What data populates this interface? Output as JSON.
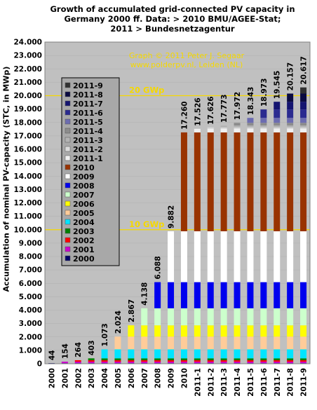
{
  "title_lines": [
    "Growth of accumulated grid-connected PV capacity in",
    "Germany 2000 ff. Data: > 2010 BMU/AGEE-Stat;",
    "2011 > Bundesnetzagentur"
  ],
  "credit_lines": [
    "Graph © 2011 Peter J. Segaar",
    "www.polderpv.nl, Leiden (NL)"
  ],
  "chart_data": {
    "type": "bar",
    "stacked": true,
    "ylabel": "Accumulation of nominal PV-capacity (STC, in MWp)",
    "ylim": [
      0,
      24000
    ],
    "ytick_step": 1000,
    "ytick_labels": [
      "0",
      "1.000",
      "2.000",
      "3.000",
      "4.000",
      "5.000",
      "6.000",
      "7.000",
      "8.000",
      "9.000",
      "10.000",
      "11.000",
      "12.000",
      "13.000",
      "14.000",
      "15.000",
      "16.000",
      "17.000",
      "18.000",
      "19.000",
      "20.000",
      "21.000",
      "22.000",
      "23.000",
      "24.000"
    ],
    "grid": true,
    "background": "#c0c0c0",
    "categories": [
      "2000",
      "2001",
      "2002",
      "2003",
      "2004",
      "2005",
      "2006",
      "2007",
      "2008",
      "2009",
      "2010",
      "2011-1",
      "2011-2",
      "2011-3",
      "2011-4",
      "2011-5",
      "2011-6",
      "2011-7",
      "2011-8",
      "2011-9"
    ],
    "totals_labels": [
      "44",
      "154",
      "264",
      "403",
      "1.073",
      "2.024",
      "2.867",
      "4.138",
      "6.088",
      "9.882",
      "17.260",
      "17.526",
      "17.626",
      "17.773",
      "17.972",
      "18.343",
      "18.973",
      "19.545",
      "20.157",
      "20.617"
    ],
    "totals": [
      44,
      154,
      264,
      403,
      1073,
      2024,
      2867,
      4138,
      6088,
      9882,
      17260,
      17526,
      17626,
      17773,
      17972,
      18343,
      18973,
      19545,
      20157,
      20617
    ],
    "series": [
      {
        "name": "2000",
        "color": "#000066",
        "increment": 44
      },
      {
        "name": "2001",
        "color": "#cc00cc",
        "increment": 110
      },
      {
        "name": "2002",
        "color": "#ff0000",
        "increment": 110
      },
      {
        "name": "2003",
        "color": "#008000",
        "increment": 139
      },
      {
        "name": "2004",
        "color": "#00e5ff",
        "increment": 670
      },
      {
        "name": "2005",
        "color": "#ffcc99",
        "increment": 951
      },
      {
        "name": "2006",
        "color": "#ffff00",
        "increment": 843
      },
      {
        "name": "2007",
        "color": "#ccffcc",
        "increment": 1271
      },
      {
        "name": "2008",
        "color": "#0000ee",
        "increment": 1950
      },
      {
        "name": "2009",
        "color": "#ffffff",
        "increment": 3794
      },
      {
        "name": "2010",
        "color": "#993300",
        "increment": 7378
      },
      {
        "name": "2011-1",
        "color": "#f0f0f0",
        "increment": 266
      },
      {
        "name": "2011-2",
        "color": "#dcdcdc",
        "increment": 100
      },
      {
        "name": "2011-3",
        "color": "#b4b4b4",
        "increment": 147
      },
      {
        "name": "2011-4",
        "color": "#8c8c8c",
        "increment": 199
      },
      {
        "name": "2011-5",
        "color": "#6c6cb0",
        "increment": 371
      },
      {
        "name": "2011-6",
        "color": "#2a2a90",
        "increment": 630
      },
      {
        "name": "2011-7",
        "color": "#141470",
        "increment": 572
      },
      {
        "name": "2011-8",
        "color": "#0a0a40",
        "increment": 612
      },
      {
        "name": "2011-9",
        "color": "#303030",
        "increment": 460
      }
    ],
    "legend_order": [
      "2011-9",
      "2011-8",
      "2011-7",
      "2011-6",
      "2011-5",
      "2011-4",
      "2011-3",
      "2011-2",
      "2011-1",
      "2010",
      "2009",
      "2008",
      "2007",
      "2006",
      "2005",
      "2004",
      "2003",
      "2002",
      "2001",
      "2000"
    ],
    "legend_placement": "left, inside plot",
    "annotations": [
      {
        "text": "20 GWp",
        "y": 20000,
        "color": "#f5d800"
      },
      {
        "text": "10 GWp",
        "y": 10000,
        "color": "#f5d800"
      }
    ]
  }
}
